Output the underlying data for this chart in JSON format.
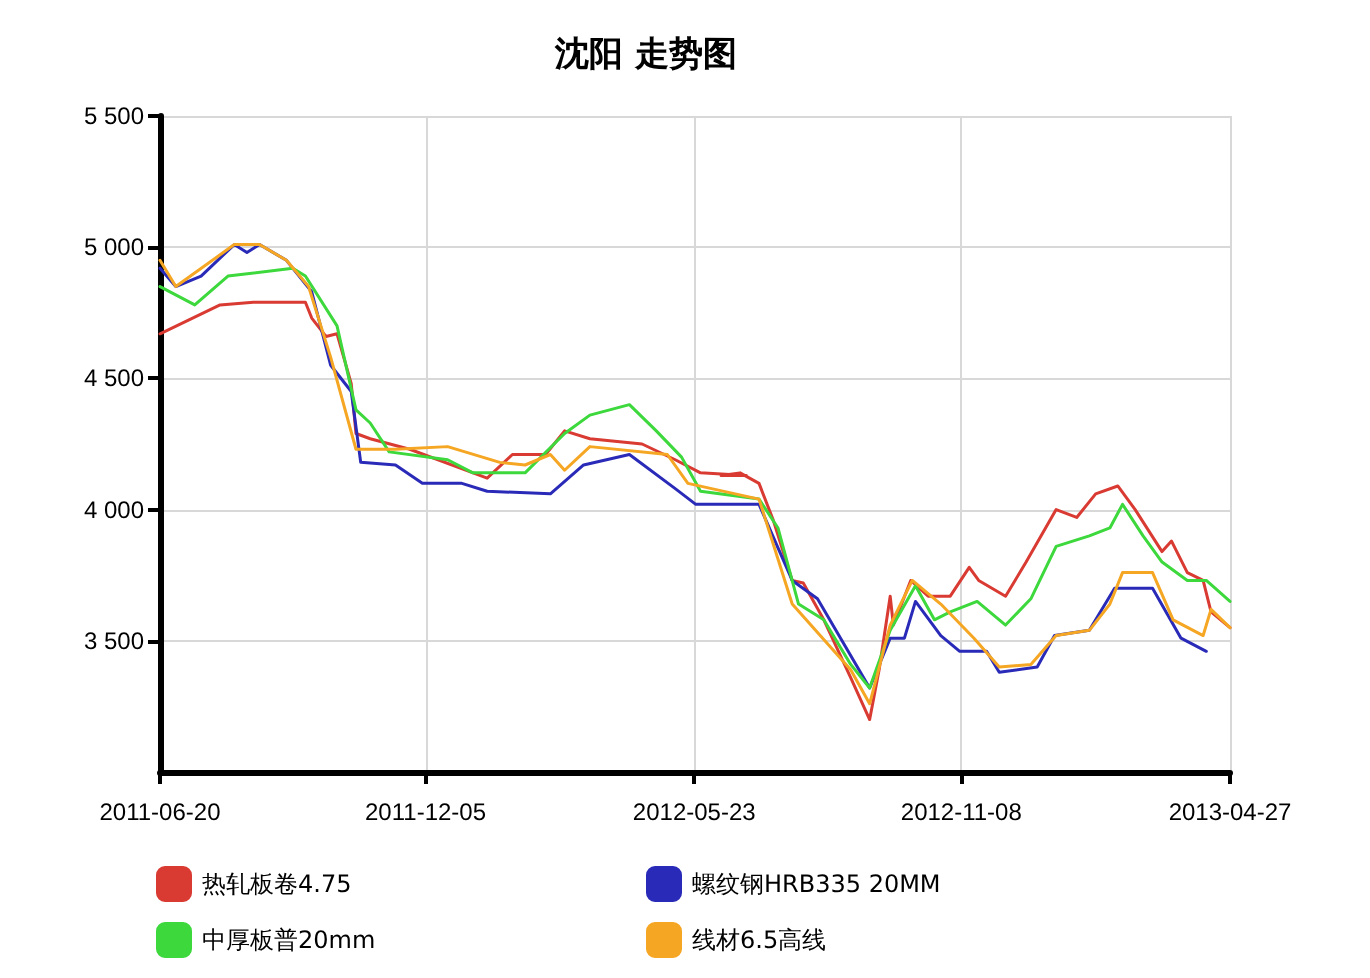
{
  "chart_data": {
    "type": "line",
    "title": "沈阳 走势图",
    "xlim": [
      "2011-06-20",
      "2013-04-27"
    ],
    "xticks": [
      {
        "value": "2011-06-20",
        "label": "2011-06-20"
      },
      {
        "value": "2011-12-05",
        "label": "2011-12-05"
      },
      {
        "value": "2012-05-23",
        "label": "2012-05-23"
      },
      {
        "value": "2012-11-08",
        "label": "2012-11-08"
      },
      {
        "value": "2013-04-27",
        "label": "2013-04-27"
      }
    ],
    "ylim": [
      3000,
      5500
    ],
    "yticks": [
      {
        "value": 3500,
        "label": "3 500"
      },
      {
        "value": 4000,
        "label": "4 000"
      },
      {
        "value": 4500,
        "label": "4 500"
      },
      {
        "value": 5000,
        "label": "5 000"
      },
      {
        "value": 5500,
        "label": "5 500"
      }
    ],
    "grid": true,
    "legend": "bottom",
    "marker": "none",
    "line_style": "solid",
    "series": [
      {
        "name": "热轧板卷4.75",
        "color": "#d93a32",
        "x": [
          "2011-06-20",
          "2011-07-28",
          "2011-08-18",
          "2011-09-20",
          "2011-09-24",
          "2011-10-03",
          "2011-10-10",
          "2011-10-19",
          "2011-10-22",
          "2011-10-31",
          "2011-11-25",
          "2012-01-13",
          "2012-01-29",
          "2012-02-19",
          "2012-03-02",
          "2012-03-18",
          "2012-04-20",
          "2012-05-11",
          "2012-05-27",
          "2012-06-25",
          "2012-06-09",
          "2012-06-21",
          "2012-07-03",
          "2012-07-12",
          "2012-07-24",
          "2012-07-31",
          "2012-08-13",
          "2012-08-30",
          "2012-09-11",
          "2012-09-17",
          "2012-09-24",
          "2012-09-26",
          "2012-10-07",
          "2012-10-18",
          "2012-11-01",
          "2012-11-13",
          "2012-11-19",
          "2012-12-06",
          "2012-12-19",
          "2013-01-07",
          "2013-01-20",
          "2013-02-01",
          "2013-02-15",
          "2013-02-26",
          "2013-03-15",
          "2013-03-21",
          "2013-03-31",
          "2013-04-10",
          "2013-04-15",
          "2013-04-27"
        ],
        "values": [
          4670,
          4780,
          4790,
          4790,
          4730,
          4660,
          4670,
          4480,
          4290,
          4270,
          4230,
          4120,
          4210,
          4210,
          4300,
          4270,
          4250,
          4190,
          4140,
          4130,
          4130,
          4140,
          4100,
          3960,
          3730,
          3720,
          3580,
          3360,
          3200,
          3390,
          3670,
          3560,
          3730,
          3670,
          3670,
          3780,
          3730,
          3670,
          3800,
          4000,
          3970,
          4060,
          4090,
          4000,
          3840,
          3880,
          3760,
          3730,
          3610,
          3550
        ]
      },
      {
        "name": "螺纹钢HRB335 20MM",
        "color": "#2a2ab8",
        "x": [
          "2011-06-20",
          "2011-06-30",
          "2011-07-16",
          "2011-08-06",
          "2011-08-14",
          "2011-08-22",
          "2011-09-08",
          "2011-09-24",
          "2011-10-06",
          "2011-10-19",
          "2011-10-25",
          "2011-11-16",
          "2011-12-03",
          "2011-12-28",
          "2012-01-13",
          "2012-02-22",
          "2012-03-14",
          "2012-04-12",
          "2012-05-11",
          "2012-05-24",
          "2012-07-03",
          "2012-07-24",
          "2012-08-09",
          "2012-09-11",
          "2012-09-24",
          "2012-10-03",
          "2012-10-10",
          "2012-10-26",
          "2012-11-07",
          "2012-11-24",
          "2012-12-02",
          "2012-12-26",
          "2013-01-06",
          "2013-01-28",
          "2013-02-13",
          "2013-03-09",
          "2013-03-27",
          "2013-04-12"
        ],
        "values": [
          4920,
          4850,
          4890,
          5010,
          4980,
          5010,
          4950,
          4830,
          4550,
          4450,
          4180,
          4170,
          4100,
          4100,
          4070,
          4060,
          4170,
          4210,
          4080,
          4020,
          4020,
          3730,
          3660,
          3320,
          3510,
          3510,
          3650,
          3520,
          3460,
          3460,
          3380,
          3400,
          3520,
          3540,
          3700,
          3700,
          3510,
          3460
        ]
      },
      {
        "name": "中厚板普20mm",
        "color": "#3cd83c",
        "x": [
          "2011-06-20",
          "2011-07-12",
          "2011-08-02",
          "2011-09-12",
          "2011-09-20",
          "2011-10-10",
          "2011-10-22",
          "2011-10-31",
          "2011-11-12",
          "2011-12-19",
          "2012-01-04",
          "2012-02-06",
          "2012-03-02",
          "2012-03-18",
          "2012-04-12",
          "2012-04-29",
          "2012-05-15",
          "2012-05-27",
          "2012-07-03",
          "2012-07-15",
          "2012-07-28",
          "2012-08-13",
          "2012-08-30",
          "2012-09-11",
          "2012-09-24",
          "2012-10-10",
          "2012-10-22",
          "2012-11-01",
          "2012-11-18",
          "2012-12-06",
          "2012-12-22",
          "2013-01-07",
          "2013-01-28",
          "2013-02-10",
          "2013-02-18",
          "2013-03-03",
          "2013-03-15",
          "2013-03-31",
          "2013-04-12",
          "2013-04-27"
        ],
        "values": [
          4850,
          4780,
          4890,
          4920,
          4890,
          4700,
          4380,
          4330,
          4220,
          4190,
          4140,
          4140,
          4290,
          4360,
          4400,
          4300,
          4200,
          4070,
          4040,
          3930,
          3640,
          3580,
          3410,
          3320,
          3540,
          3710,
          3580,
          3610,
          3650,
          3560,
          3660,
          3860,
          3900,
          3930,
          4020,
          3900,
          3800,
          3730,
          3730,
          3650
        ]
      },
      {
        "name": "线材6.5高线",
        "color": "#f5a623",
        "x": [
          "2011-06-20",
          "2011-06-30",
          "2011-08-06",
          "2011-08-22",
          "2011-09-08",
          "2011-09-22",
          "2011-10-06",
          "2011-10-22",
          "2011-11-16",
          "2011-12-19",
          "2012-01-21",
          "2012-02-06",
          "2012-02-22",
          "2012-03-02",
          "2012-03-18",
          "2012-05-06",
          "2012-05-19",
          "2012-07-03",
          "2012-07-24",
          "2012-08-30",
          "2012-09-11",
          "2012-09-24",
          "2012-10-08",
          "2012-10-26",
          "2012-11-16",
          "2012-12-02",
          "2012-12-22",
          "2013-01-07",
          "2013-01-28",
          "2013-02-10",
          "2013-02-18",
          "2013-03-09",
          "2013-03-22",
          "2013-04-10",
          "2013-04-15",
          "2013-04-27"
        ],
        "values": [
          4950,
          4850,
          5010,
          5010,
          4950,
          4850,
          4580,
          4230,
          4230,
          4240,
          4180,
          4170,
          4210,
          4150,
          4240,
          4210,
          4100,
          4040,
          3640,
          3390,
          3260,
          3560,
          3730,
          3640,
          3510,
          3400,
          3410,
          3520,
          3540,
          3640,
          3760,
          3760,
          3580,
          3520,
          3620,
          3550
        ]
      }
    ]
  }
}
